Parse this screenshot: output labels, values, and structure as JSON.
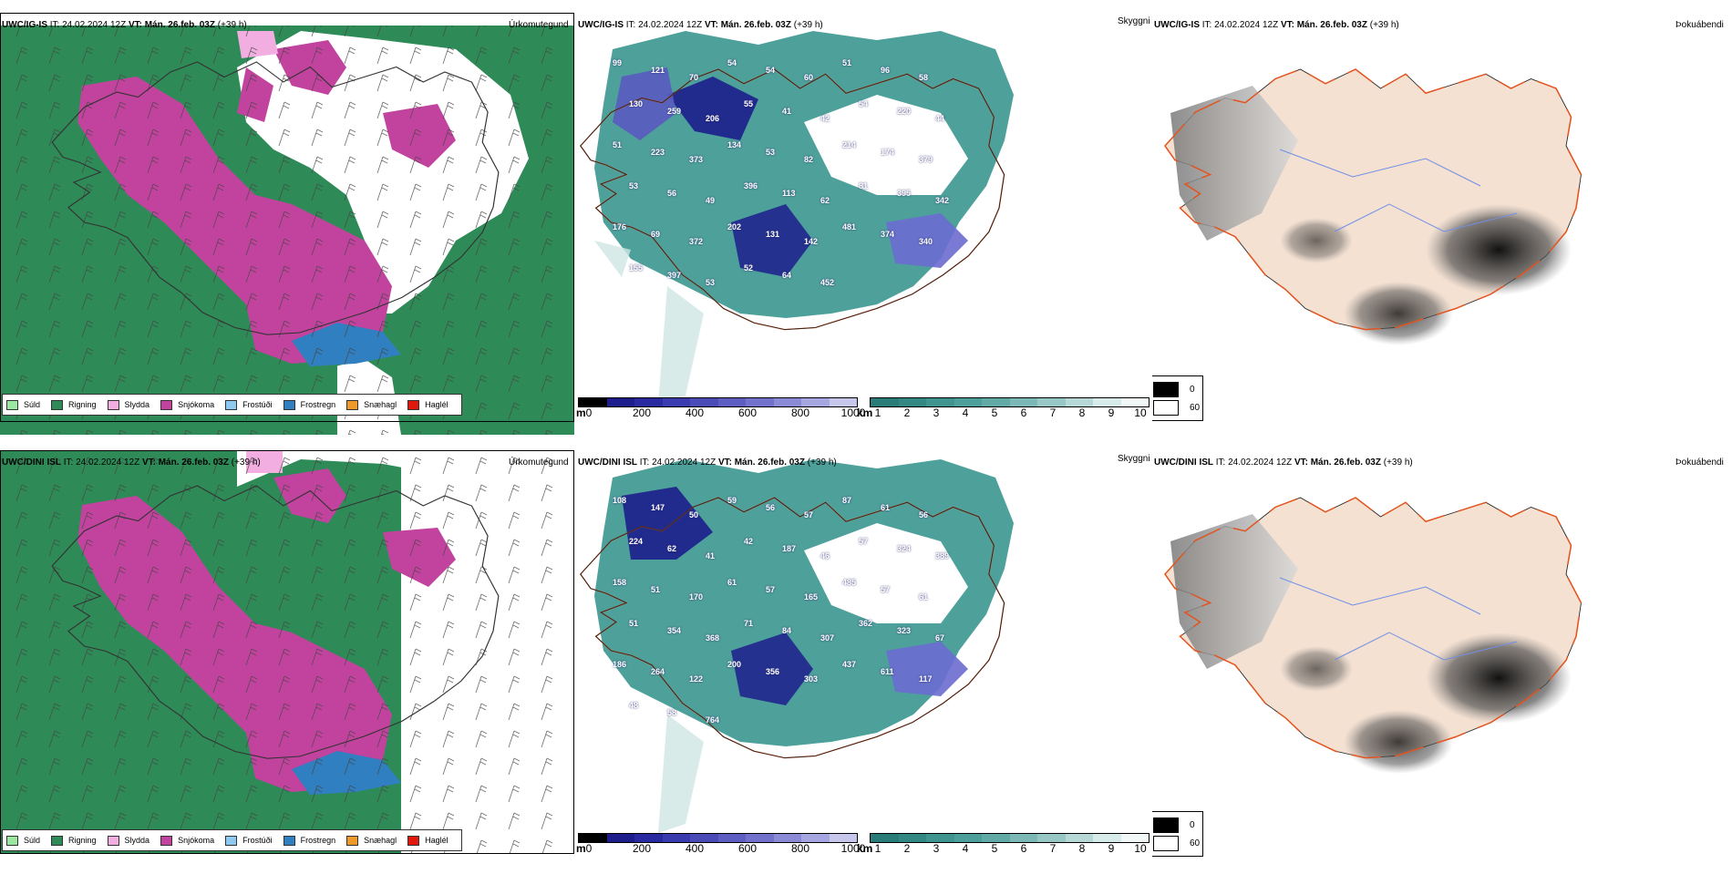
{
  "colors": {
    "suld": "#9be6a0",
    "rigning": "#2e8b57",
    "slydda": "#f2aee0",
    "snjokoma": "#c2439e",
    "frostudi": "#8ec9f2",
    "frostregn": "#2f7fc1",
    "snaehagl": "#ee9a2a",
    "haglel": "#e0180e",
    "teal": "#2f8f8a",
    "blue": "#1d1d8c",
    "land": "#f4e1d2",
    "roads": "#e3541e"
  },
  "rows": [
    {
      "model": "UWC/IG-IS",
      "init": " IT: 24.02.2024 12Z ",
      "vt_label": "VT: Mán. 26.feb. 03Z",
      "lead": " (+39 h)",
      "labels": [
        "99",
        "121",
        "70",
        "54",
        "54",
        "60",
        "51",
        "96",
        "58",
        "130",
        "259",
        "206",
        "55",
        "41",
        "42",
        "54",
        "220",
        "44",
        "51",
        "223",
        "373",
        "134",
        "53",
        "82",
        "214",
        "174",
        "379",
        "53",
        "56",
        "49",
        "396",
        "113",
        "62",
        "81",
        "395",
        "342",
        "176",
        "69",
        "372",
        "202",
        "131",
        "142",
        "481",
        "374",
        "340",
        "155",
        "397",
        "53",
        "52",
        "64",
        "452"
      ]
    },
    {
      "model": "UWC/DINI ISL",
      "init": " IT: 24.02.2024 12Z ",
      "vt_label": "VT: Mán. 26.feb. 03Z",
      "lead": " (+39 h)",
      "labels": [
        "108",
        "147",
        "50",
        "59",
        "56",
        "57",
        "87",
        "61",
        "56",
        "224",
        "62",
        "41",
        "42",
        "187",
        "46",
        "57",
        "324",
        "389",
        "158",
        "51",
        "170",
        "61",
        "57",
        "165",
        "485",
        "57",
        "61",
        "51",
        "354",
        "368",
        "71",
        "84",
        "307",
        "362",
        "323",
        "67",
        "186",
        "264",
        "122",
        "200",
        "356",
        "303",
        "437",
        "611",
        "117",
        "48",
        "58",
        "764"
      ]
    }
  ],
  "titles": {
    "p1": "Úrkomutegund",
    "p2": "Skyggni",
    "p3": "Þokuábendi"
  },
  "legend1": [
    "Súld",
    "Rigning",
    "Slydda",
    "Snjókoma",
    "Frostúði",
    "Frostregn",
    "Snæhagl",
    "Haglél"
  ],
  "cbar_m": {
    "unit": "m",
    "ticks": [
      "0",
      "200",
      "400",
      "600",
      "800",
      "1000"
    ]
  },
  "cbar_km": {
    "unit": "km",
    "ticks": [
      "1",
      "2",
      "3",
      "4",
      "5",
      "6",
      "7",
      "8",
      "9",
      "10"
    ]
  },
  "fog_legend": [
    "0",
    "60"
  ]
}
